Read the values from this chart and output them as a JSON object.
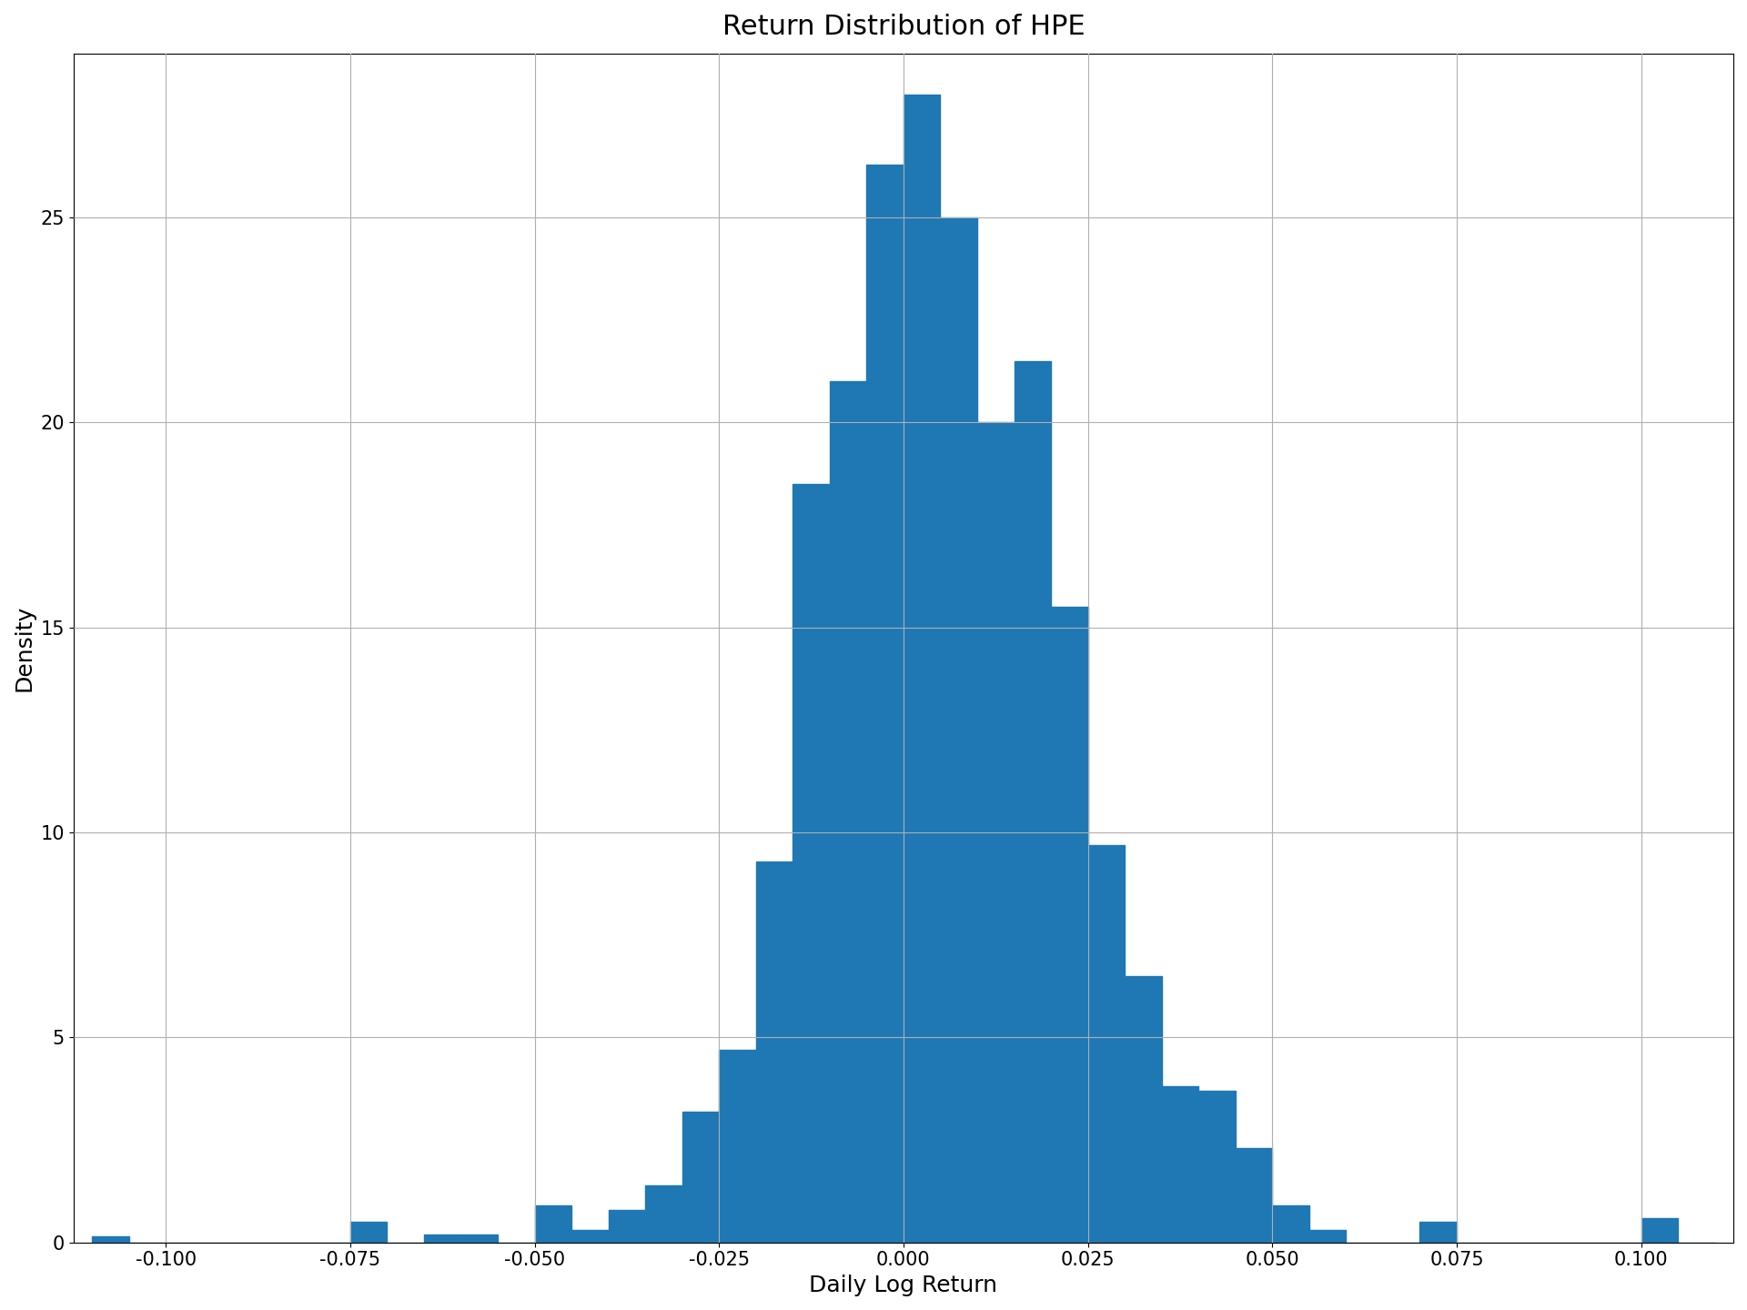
{
  "title": "Return Distribution of HPE",
  "xlabel": "Daily Log Return",
  "ylabel": "Density",
  "bar_color": "#1f77b4",
  "xlim": [
    -0.1125,
    0.1125
  ],
  "ylim": [
    0,
    29
  ],
  "bin_width": 0.005,
  "x_ticks": [
    -0.1,
    -0.075,
    -0.05,
    -0.025,
    0.0,
    0.025,
    0.05,
    0.075,
    0.1
  ],
  "y_ticks": [
    0,
    5,
    10,
    15,
    20,
    25
  ],
  "grid_color": "#b0b0b0",
  "title_fontsize": 22,
  "label_fontsize": 18,
  "tick_fontsize": 15,
  "bins_left_edges": [
    -0.11,
    -0.105,
    -0.1,
    -0.095,
    -0.09,
    -0.085,
    -0.08,
    -0.075,
    -0.07,
    -0.065,
    -0.06,
    -0.055,
    -0.05,
    -0.045,
    -0.04,
    -0.035,
    -0.03,
    -0.025,
    -0.02,
    -0.015,
    -0.01,
    -0.005,
    0.0,
    0.005,
    0.01,
    0.015,
    0.02,
    0.025,
    0.03,
    0.035,
    0.04,
    0.045,
    0.05,
    0.055,
    0.06,
    0.065,
    0.07,
    0.075,
    0.08,
    0.085,
    0.09,
    0.095,
    0.1,
    0.105
  ],
  "bar_heights": [
    0.15,
    0.0,
    0.0,
    0.0,
    0.0,
    0.0,
    0.0,
    0.5,
    0.0,
    0.2,
    0.2,
    0.0,
    0.9,
    0.3,
    0.8,
    1.4,
    3.2,
    4.7,
    9.3,
    18.5,
    21.0,
    26.3,
    28.0,
    25.0,
    20.0,
    21.5,
    15.5,
    9.7,
    6.5,
    3.8,
    3.7,
    2.3,
    0.9,
    0.3,
    0.0,
    0.0,
    0.5,
    0.0,
    0.0,
    0.0,
    0.0,
    0.0,
    0.6,
    0.0
  ]
}
